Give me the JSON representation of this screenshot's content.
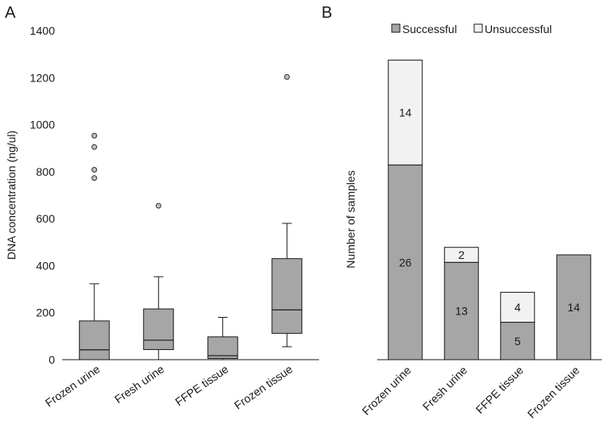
{
  "chart_data": [
    {
      "panel": "A",
      "type": "box",
      "ylabel": "DNA concentration (ng/ul)",
      "ylim": [
        0,
        1400
      ],
      "yticks": [
        0,
        200,
        400,
        600,
        800,
        1000,
        1200,
        1400
      ],
      "categories": [
        "Frozen urine",
        "Fresh urine",
        "FFPE tissue",
        "Frozen tissue"
      ],
      "boxes": [
        {
          "category": "Frozen urine",
          "whisker_low": 0,
          "q1": 0,
          "median": 42,
          "q3": 165,
          "whisker_high": 323,
          "outliers": [
            773,
            808,
            905,
            953
          ]
        },
        {
          "category": "Fresh urine",
          "whisker_low": 0,
          "q1": 43,
          "median": 83,
          "q3": 216,
          "whisker_high": 353,
          "outliers": [
            655
          ]
        },
        {
          "category": "FFPE tissue",
          "whisker_low": 0,
          "q1": 5,
          "median": 17,
          "q3": 97,
          "whisker_high": 180,
          "outliers": []
        },
        {
          "category": "Frozen tissue",
          "whisker_low": 55,
          "q1": 112,
          "median": 212,
          "q3": 430,
          "whisker_high": 580,
          "outliers": [
            1203
          ]
        }
      ],
      "colors": {
        "box": "#a6a6a6",
        "outlier": "#c0c0c0",
        "line": "#1a1a1a"
      }
    },
    {
      "panel": "B",
      "type": "bar",
      "stacked": true,
      "ylabel": "Number of samples",
      "categories": [
        "Frozen urine",
        "Fresh urine",
        "FFPE tissue",
        "Frozen tissue"
      ],
      "series": [
        {
          "name": "Successful",
          "values": [
            26,
            13,
            5,
            14
          ],
          "labels": [
            "26",
            "13",
            "5",
            "14"
          ],
          "color": "#a6a6a6"
        },
        {
          "name": "Unsuccessful",
          "values": [
            14,
            2,
            4,
            0
          ],
          "labels": [
            "14",
            "2",
            "4",
            ""
          ],
          "color": "#f2f2f2"
        }
      ],
      "ylim": [
        0,
        42
      ],
      "legend": "top"
    }
  ]
}
